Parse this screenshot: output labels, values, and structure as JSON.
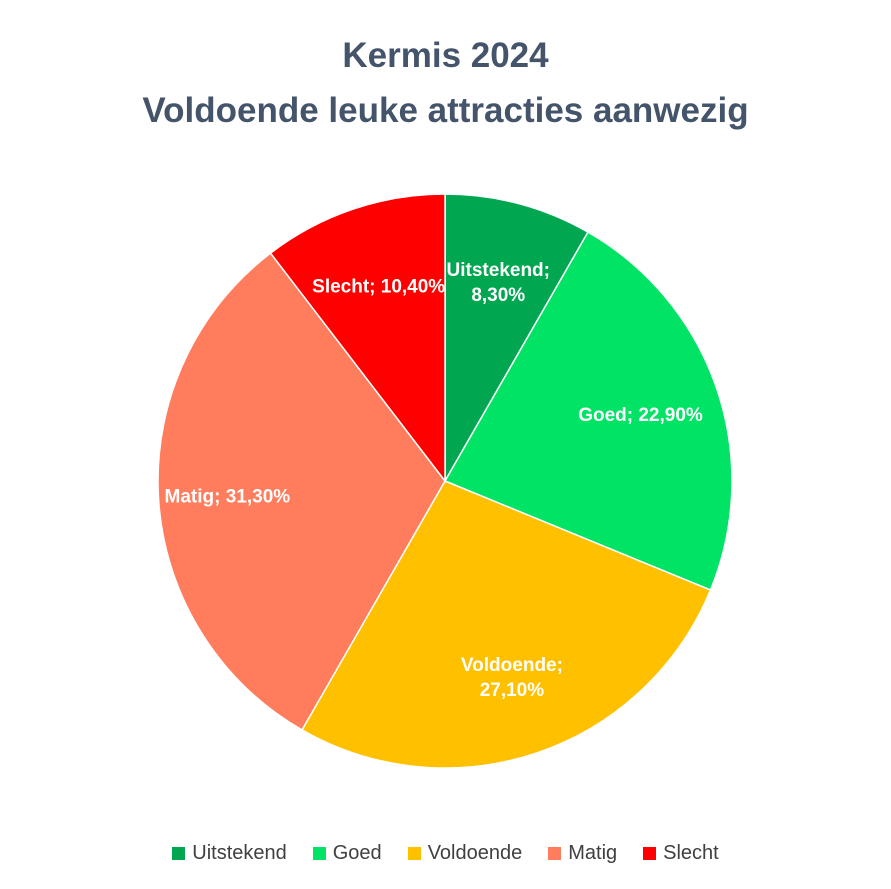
{
  "chart_data": {
    "type": "pie",
    "title_lines": [
      "Kermis 2024",
      "Voldoende leuke attracties aanwezig"
    ],
    "slices": [
      {
        "name": "Uitstekend",
        "value": 8.3,
        "label_lines": [
          "Uitstekend;",
          "8,30%"
        ],
        "color": "#00a650"
      },
      {
        "name": "Goed",
        "value": 22.9,
        "label_lines": [
          "Goed; 22,90%"
        ],
        "color": "#00e364"
      },
      {
        "name": "Voldoende",
        "value": 27.1,
        "label_lines": [
          "Voldoende;",
          "27,10%"
        ],
        "color": "#ffc000"
      },
      {
        "name": "Matig",
        "value": 31.3,
        "label_lines": [
          "Matig; 31,30%"
        ],
        "color": "#ff7c5c"
      },
      {
        "name": "Slecht",
        "value": 10.4,
        "label_lines": [
          "Slecht; 10,40%"
        ],
        "color": "#ff0000"
      }
    ],
    "legend_position": "bottom",
    "legend": [
      "Uitstekend",
      "Goed",
      "Voldoende",
      "Matig",
      "Slecht"
    ]
  }
}
